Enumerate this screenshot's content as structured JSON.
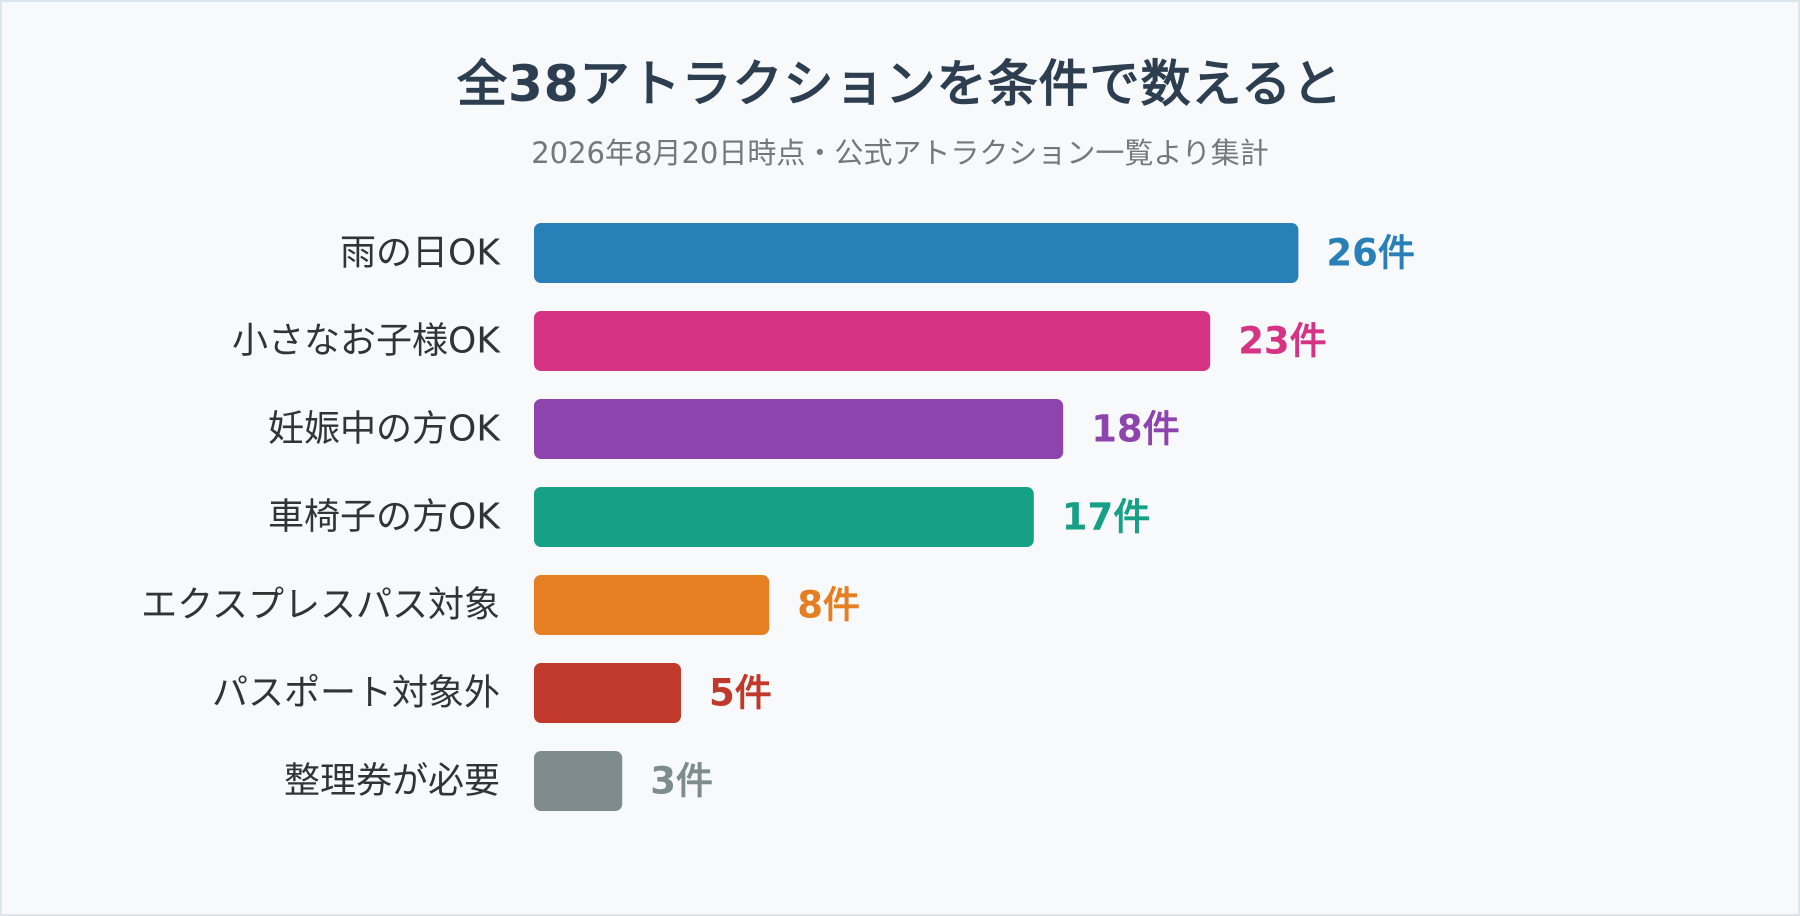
{
  "title": "全38アトラクションを条件で数えると",
  "subtitle": "2026年8月20日時点・公式アトラクション一覧より集計",
  "chart_data": {
    "type": "bar",
    "orientation": "horizontal",
    "categories": [
      "雨の日OK",
      "小さなお子様OK",
      "妊娠中の方OK",
      "車椅子の方OK",
      "エクスプレスパス対象",
      "パスポート対象外",
      "整理券が必要"
    ],
    "values": [
      26,
      23,
      18,
      17,
      8,
      5,
      3
    ],
    "value_labels": [
      "26件",
      "23件",
      "18件",
      "17件",
      "8件",
      "5件",
      "3件"
    ],
    "colors": [
      "#2980b9",
      "#d63384",
      "#8e44ad",
      "#16a085",
      "#e67e22",
      "#c0392b",
      "#7f8c8d"
    ],
    "title": "全38アトラクションを条件で数えると",
    "subtitle": "2026年8月20日時点・公式アトラクション一覧より集計",
    "xlabel": "",
    "ylabel": "",
    "grid": false,
    "legend": "none"
  }
}
